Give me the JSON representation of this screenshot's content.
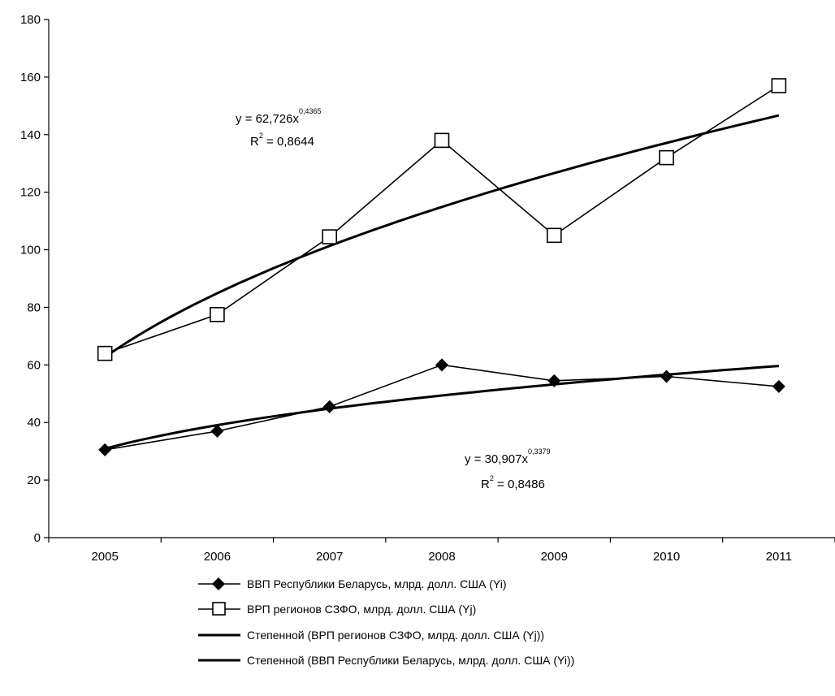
{
  "chart_data": {
    "type": "line",
    "title": "",
    "xlabel": "",
    "ylabel": "",
    "categories": [
      "2005",
      "2006",
      "2007",
      "2008",
      "2009",
      "2010",
      "2011"
    ],
    "ylim": [
      0,
      180
    ],
    "yticks": [
      0,
      20,
      40,
      60,
      80,
      100,
      120,
      140,
      160,
      180
    ],
    "grid": false,
    "legend_position": "bottom",
    "series": [
      {
        "name": "ВВП Республики Беларусь, млрд. долл. США (Yi)",
        "values": [
          30.5,
          37,
          45.5,
          60,
          54.5,
          56,
          52.5
        ],
        "marker": "diamond-filled",
        "color": "#000000"
      },
      {
        "name": "ВРП регионов СЗФО, млрд. долл. США (Yj)",
        "values": [
          64,
          77.5,
          104.5,
          138,
          105,
          132,
          157
        ],
        "marker": "square-open",
        "color": "#000000"
      },
      {
        "name": "Степенной (ВРП регионов СЗФО, млрд. долл. США (Yj))",
        "trend": "power",
        "coef": 62.726,
        "exponent": 0.4365,
        "color": "#000000"
      },
      {
        "name": "Степенной (ВВП Республики Беларусь, млрд. долл. США (Yi))",
        "trend": "power",
        "coef": 30.907,
        "exponent": 0.3379,
        "color": "#000000"
      }
    ],
    "annotations": [
      {
        "id": "upper-eq",
        "base": "y = 62,726x",
        "exp": "0,4365",
        "r2_base": "R",
        "r2_exp": "2",
        "r2_value": " = 0,8644"
      },
      {
        "id": "lower-eq",
        "base": "y = 30,907x",
        "exp": "0,3379",
        "r2_base": "R",
        "r2_exp": "2",
        "r2_value": " = 0,8486"
      }
    ]
  }
}
